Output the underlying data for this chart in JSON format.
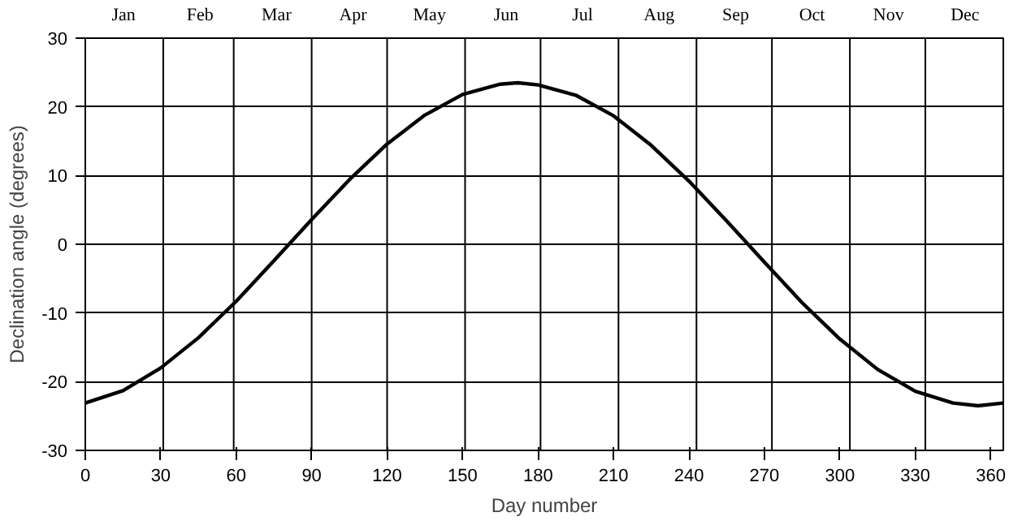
{
  "chart_data": {
    "type": "line",
    "xlabel": "Day number",
    "ylabel": "Declination angle (degrees)",
    "x": [
      0,
      15,
      30,
      45,
      60,
      75,
      90,
      105,
      120,
      135,
      150,
      165,
      172,
      180,
      195,
      210,
      225,
      240,
      255,
      270,
      285,
      300,
      315,
      330,
      345,
      355,
      365
    ],
    "series": [
      {
        "color": "#000000",
        "values": [
          -23.1,
          -21.3,
          -18.0,
          -13.6,
          -8.3,
          -2.4,
          3.6,
          9.4,
          14.6,
          18.8,
          21.8,
          23.3,
          23.5,
          23.2,
          21.7,
          18.7,
          14.4,
          9.2,
          3.4,
          -2.6,
          -8.5,
          -13.8,
          -18.2,
          -21.4,
          -23.1,
          -23.5,
          -23.1
        ]
      }
    ],
    "xlim": [
      0,
      365
    ],
    "ylim": [
      -30,
      30
    ],
    "xticks": [
      0,
      30,
      60,
      90,
      120,
      150,
      180,
      210,
      240,
      270,
      300,
      330,
      360
    ],
    "yticks": [
      -30,
      -20,
      -10,
      0,
      10,
      20,
      30
    ],
    "annotations": [
      "Jan",
      "Feb",
      "Mar",
      "Apr",
      "May",
      "Jun",
      "Jul",
      "Aug",
      "Sep",
      "Oct",
      "Nov",
      "Dec"
    ],
    "ref_lines": [
      {
        "axis": "x",
        "value": 31
      },
      {
        "axis": "x",
        "value": 59
      },
      {
        "axis": "x",
        "value": 90
      },
      {
        "axis": "x",
        "value": 120
      },
      {
        "axis": "x",
        "value": 151
      },
      {
        "axis": "x",
        "value": 181
      },
      {
        "axis": "x",
        "value": 212
      },
      {
        "axis": "x",
        "value": 243
      },
      {
        "axis": "x",
        "value": 273
      },
      {
        "axis": "x",
        "value": 304
      },
      {
        "axis": "x",
        "value": 334
      }
    ],
    "grid": "y",
    "marker": "none",
    "line_style": "solid"
  }
}
